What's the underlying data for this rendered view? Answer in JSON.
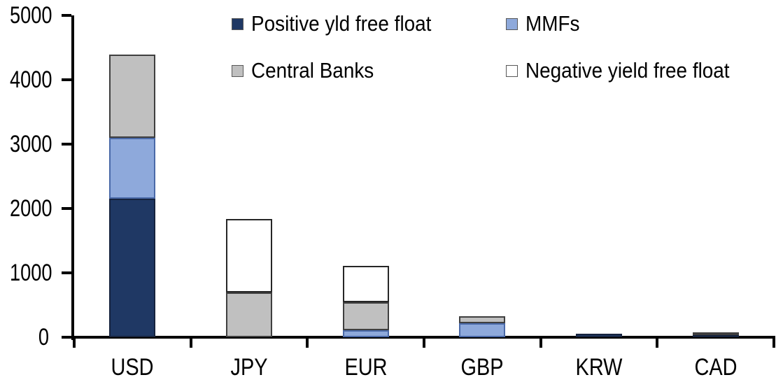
{
  "chart_data": {
    "type": "bar",
    "stacked": true,
    "title": "",
    "xlabel": "",
    "ylabel": "",
    "categories": [
      "USD",
      "JPY",
      "EUR",
      "GBP",
      "KRW",
      "CAD"
    ],
    "series": [
      {
        "name": "Positive yld free float",
        "color": "#1F3864",
        "border": "#16233E",
        "values": [
          2150,
          0,
          0,
          0,
          50,
          40
        ]
      },
      {
        "name": "MMFs",
        "color": "#8EA9DB",
        "border": "#4A69A8",
        "values": [
          950,
          0,
          110,
          220,
          0,
          0
        ]
      },
      {
        "name": "Central Banks",
        "color": "#C0C0C0",
        "border": "#3F3F3F",
        "values": [
          1290,
          700,
          430,
          110,
          0,
          40
        ]
      },
      {
        "name": "Negative yield free float",
        "color": "#FFFFFF",
        "border": "#262626",
        "values": [
          0,
          1140,
          570,
          0,
          0,
          0
        ]
      }
    ],
    "totals": [
      4390,
      1840,
      1110,
      330,
      50,
      80
    ],
    "ylim": [
      0,
      5000
    ],
    "yticks": [
      0,
      1000,
      2000,
      3000,
      4000,
      5000
    ],
    "grid": false,
    "legend_position": "top",
    "axis_color": "#000000",
    "plot_background": "#FFFFFF"
  }
}
